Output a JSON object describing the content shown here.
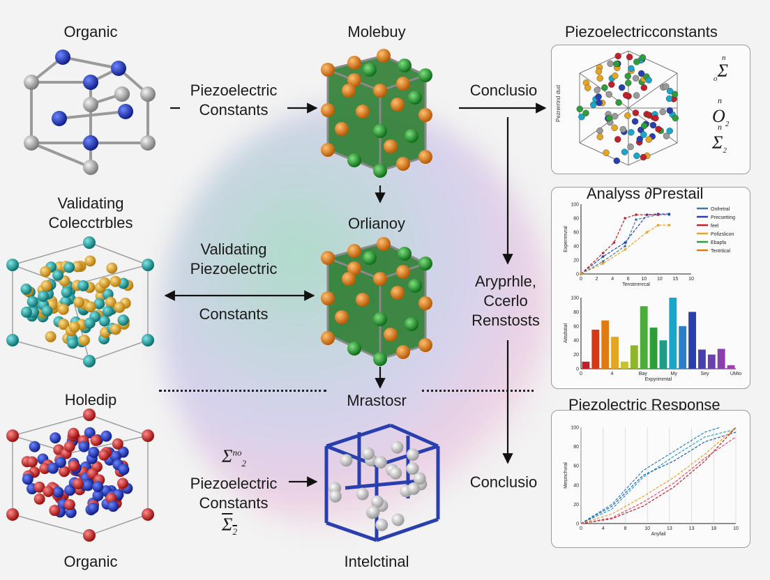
{
  "labels": {
    "organic_top": "Organic",
    "molebuy": "Molebuy",
    "piezo_const_title": "Piezoelectricconstants",
    "piezo_constants_1_a": "Piezoelectric",
    "piezo_constants_1_b": "Constants",
    "conclusio_top": "Conclusio",
    "validating_collectibles_a": "Validating",
    "validating_collectibles_b": "Colecctrbles",
    "orlianoy": "Orlianoy",
    "validating_piezo_a": "Validating",
    "validating_piezo_b": "Piezoelectric",
    "constants_mid": "Constants",
    "aryprhle_a": "Aryprhle,",
    "aryprhle_b": "Ccerlo",
    "aryprhle_c": "Renstosts",
    "analysis_title": "Analyss ∂Prestail",
    "holedip": "Holedip",
    "mrastosr": "Mrastosr",
    "piezo_constants_2_a": "Piezoelectric",
    "piezo_constants_2_b": "Constants",
    "conclusio_bottom": "Conclusio",
    "piezo_response_title": "Piezolectric Response",
    "organic_bottom": "Organic",
    "intelctinal": "Intelctinal",
    "panel1_side_text": "Pezrerrtnd dud"
  },
  "math": {
    "panel1_m1_sup": "n",
    "panel1_m1_sub": "o",
    "panel1_m1": "Σ",
    "panel1_m2_sup": "n",
    "panel1_m2": "O",
    "panel1_m2_sub": "2",
    "panel1_m3_sup": "n",
    "panel1_m3": "Σ",
    "panel1_m3_sub": "2",
    "left_m1": "Σ",
    "left_m1_sup": "n",
    "left_m1_sup2": "o",
    "left_m1_sub": "2",
    "left_m2": "Σ",
    "left_m2_sub": "2"
  },
  "colors": {
    "organic": [
      "#9a9a9a",
      "#1f3fbf"
    ],
    "molebuy": [
      "#e07b12",
      "#1f9e2a",
      "#2e7d32"
    ],
    "validating": [
      "#1aa6a6",
      "#e6a520"
    ],
    "holedip": [
      "#d71f1f",
      "#1f2fc8"
    ],
    "intelctinal": [
      "#c8c8c8",
      "#2a3fae"
    ]
  },
  "chart_data": [
    {
      "type": "line",
      "title": "Analyss ∂Prestail",
      "xlabel": "Tenstmmrcal",
      "ylabel": "Experrmvral",
      "x_ticks": [
        "0",
        "2",
        "4",
        "6",
        "10",
        "10",
        "15",
        "10"
      ],
      "y_ticks": [
        "0",
        "20",
        "40",
        "60",
        "80",
        "100"
      ],
      "xlim": [
        0,
        10
      ],
      "ylim": [
        0,
        100
      ],
      "legend_position": "right",
      "series": [
        {
          "name": "Onfretral",
          "color": "#3c7a9e",
          "x": [
            0,
            2,
            4,
            5,
            7,
            8
          ],
          "y": [
            0,
            18,
            40,
            78,
            85,
            85
          ]
        },
        {
          "name": "Precsetting",
          "color": "#2a3fae",
          "x": [
            0,
            2,
            4,
            6,
            7,
            8
          ],
          "y": [
            0,
            25,
            45,
            85,
            86,
            86
          ]
        },
        {
          "name": "feel",
          "color": "#c0202a",
          "x": [
            0,
            2,
            3,
            4,
            5,
            7
          ],
          "y": [
            0,
            30,
            45,
            80,
            85,
            85
          ]
        },
        {
          "name": "Pofizslicon",
          "color": "#e6a520",
          "x": [
            0,
            2,
            4,
            6,
            7,
            8
          ],
          "y": [
            0,
            15,
            35,
            60,
            70,
            70
          ]
        },
        {
          "name": "Ebapfa",
          "color": "#2e9e3a",
          "x": [],
          "y": []
        },
        {
          "name": "Tentrtical",
          "color": "#e07b12",
          "x": [],
          "y": []
        }
      ]
    },
    {
      "type": "bar",
      "ylabel": "Aitsdstial",
      "xlabel": "Expyrimmtal",
      "x_ticks": [
        "0",
        "4",
        "Bay",
        "My",
        "Sey",
        "UMio"
      ],
      "y_ticks": [
        "0",
        "20",
        "40",
        "60",
        "80",
        "100"
      ],
      "ylim": [
        0,
        100
      ],
      "values": [
        10,
        55,
        68,
        45,
        10,
        33,
        88,
        58,
        40,
        100,
        60,
        80,
        27,
        20,
        28,
        5
      ],
      "colors": [
        "#c0202a",
        "#d23a1a",
        "#e07b12",
        "#e6a520",
        "#c9c02a",
        "#8fb52a",
        "#4cae3a",
        "#2e9e3a",
        "#1e9e8a",
        "#1aa6c8",
        "#2a7fc8",
        "#2a3fae",
        "#4a3fae",
        "#6a3fae",
        "#8a3fae",
        "#a03fae"
      ]
    },
    {
      "type": "line",
      "title": "Piezolectric Response",
      "xlabel": "Anyfail",
      "ylabel": "Mesmchvral",
      "x_ticks": [
        "0",
        "4",
        "8",
        "10",
        "13",
        "13",
        "18",
        "10"
      ],
      "y_ticks": [
        "0",
        "20",
        "40",
        "60",
        "80",
        "100"
      ],
      "xlim": [
        0,
        10
      ],
      "ylim": [
        0,
        100
      ],
      "series": [
        {
          "color": "#2a7fc8",
          "x": [
            0,
            2,
            4,
            6,
            8,
            9
          ],
          "y": [
            0,
            20,
            55,
            75,
            95,
            100
          ]
        },
        {
          "color": "#2a9ec8",
          "x": [
            0,
            2,
            4,
            6,
            8,
            10
          ],
          "y": [
            0,
            15,
            48,
            70,
            90,
            98
          ]
        },
        {
          "color": "#1a5fb0",
          "x": [
            0,
            2,
            4,
            6,
            8,
            10
          ],
          "y": [
            0,
            18,
            50,
            65,
            85,
            95
          ]
        },
        {
          "color": "#e6a520",
          "x": [
            0,
            2,
            4,
            6,
            8,
            10
          ],
          "y": [
            0,
            10,
            28,
            48,
            72,
            100
          ]
        },
        {
          "color": "#c0202a",
          "x": [
            0,
            2,
            4,
            6,
            8,
            10
          ],
          "y": [
            0,
            5,
            18,
            38,
            65,
            100
          ]
        },
        {
          "color": "#e04a6a",
          "x": [
            0,
            2,
            4,
            6,
            8,
            10
          ],
          "y": [
            0,
            6,
            22,
            42,
            68,
            90
          ]
        }
      ]
    }
  ]
}
